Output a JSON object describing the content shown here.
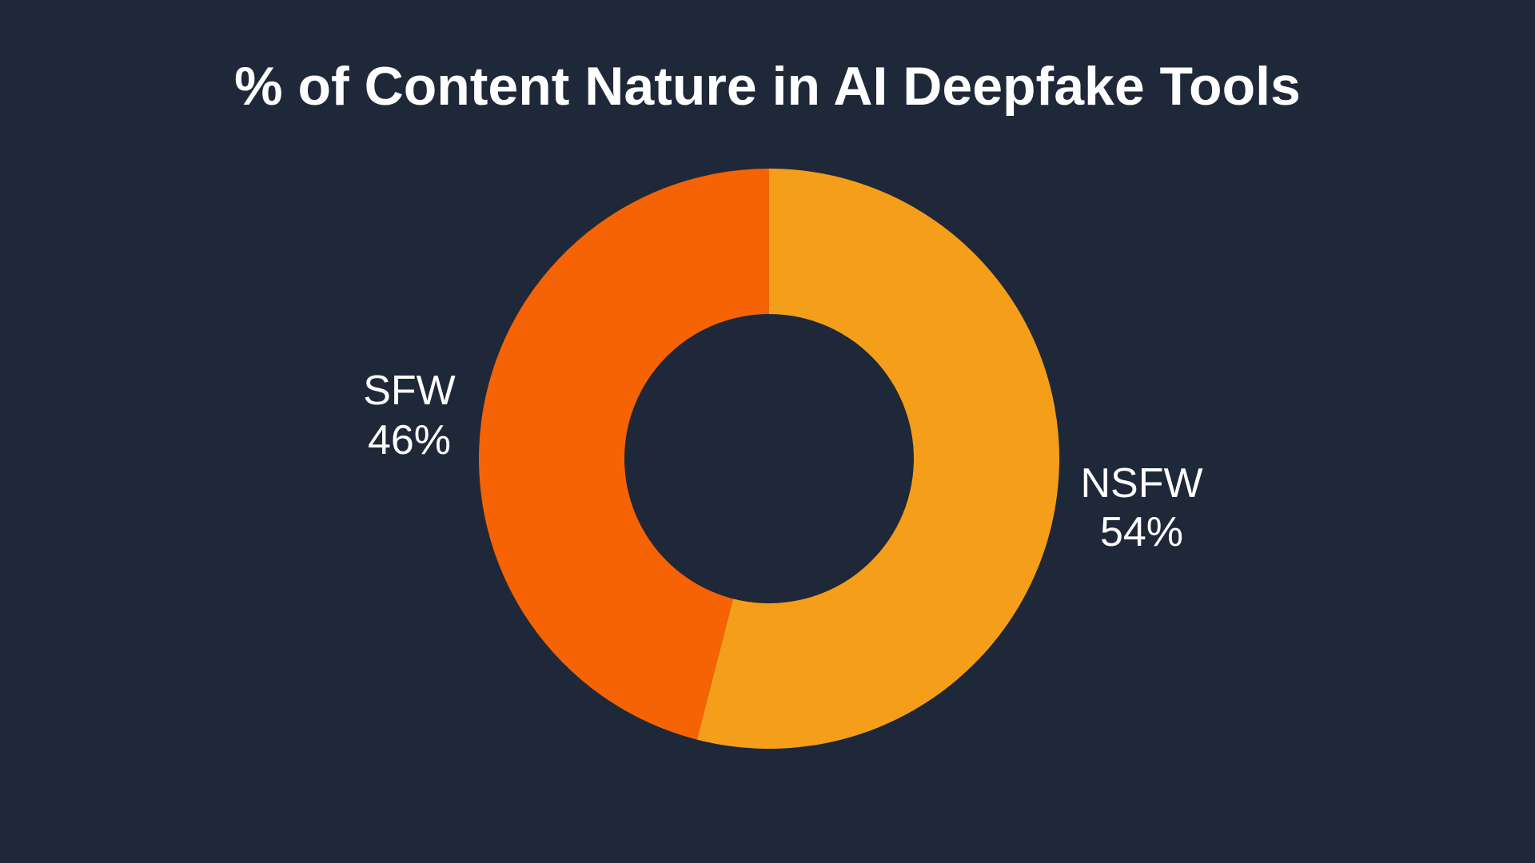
{
  "chart_data": {
    "type": "pie",
    "variant": "donut",
    "title": "% of Content Nature in AI Deepfake Tools",
    "slices": [
      {
        "label": "NSFW",
        "value": 54,
        "value_label": "54%",
        "color": "#f59e1a"
      },
      {
        "label": "SFW",
        "value": 46,
        "value_label": "46%",
        "color": "#f56304"
      }
    ],
    "legend": "none",
    "background": "#1f2839"
  }
}
